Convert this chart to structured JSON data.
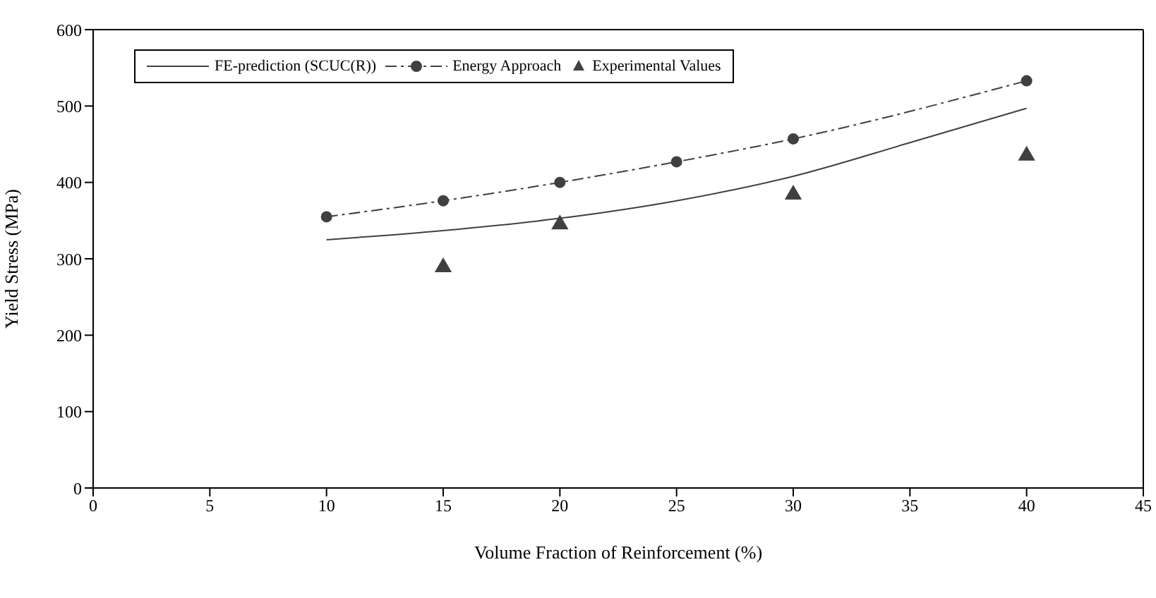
{
  "chart_data": {
    "type": "line",
    "xlabel": "Volume Fraction of Reinforcement (%)",
    "ylabel": "Yield Stress (MPa)",
    "xlim": [
      0,
      45
    ],
    "xticks": [
      0,
      5,
      10,
      15,
      20,
      25,
      30,
      35,
      40,
      45
    ],
    "ylim": [
      0,
      600
    ],
    "yticks": [
      0,
      100,
      200,
      300,
      400,
      500,
      600
    ],
    "legend": "top left",
    "series": [
      {
        "name": "FE-prediction (SCUC(R))",
        "color": "#404040",
        "marker": "none",
        "line_style": "solid",
        "x": [
          10,
          15,
          20,
          25,
          30,
          35,
          40
        ],
        "values": [
          325,
          337,
          353,
          376,
          408,
          452,
          497
        ]
      },
      {
        "name": "Energy Approach",
        "color": "#404040",
        "marker": "circle",
        "line_style": "dashed",
        "x": [
          10,
          15,
          20,
          25,
          30,
          40
        ],
        "values": [
          355,
          376,
          400,
          427,
          457,
          533
        ]
      },
      {
        "name": "Experimental Values",
        "type": "scatter",
        "color": "#404040",
        "marker": "triangle",
        "x": [
          15,
          20,
          30,
          40
        ],
        "values": [
          289,
          345,
          384,
          435
        ]
      }
    ]
  }
}
